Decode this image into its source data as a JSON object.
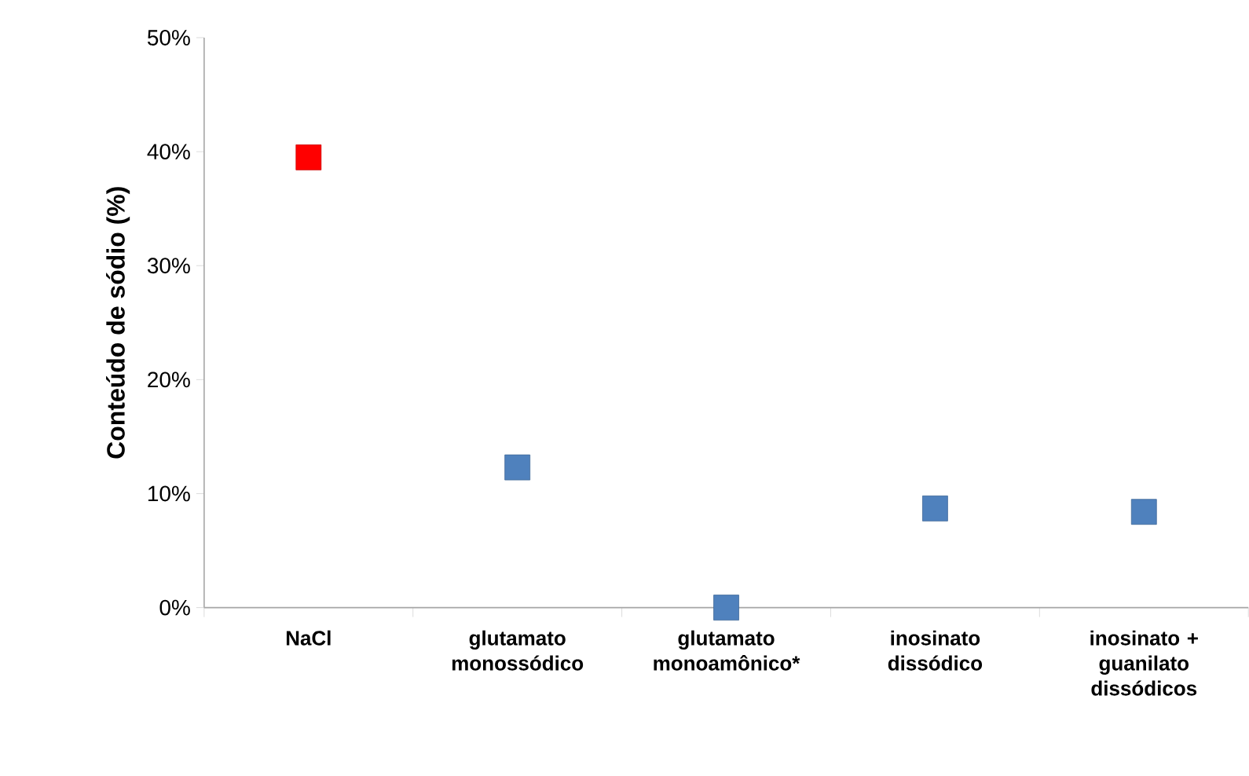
{
  "chart_data": {
    "type": "scatter",
    "ylabel": "Conteúdo de sódio (%)",
    "categories": [
      "NaCl",
      "glutamato monossódico",
      "glutamato monoamônico*",
      "inosinato dissódico",
      "inosinato + guanilato dissódicos"
    ],
    "values": [
      39.5,
      12.3,
      0,
      8.7,
      8.4
    ],
    "colors": [
      "#ff0000",
      "#4f81bd",
      "#4f81bd",
      "#4f81bd",
      "#4f81bd"
    ],
    "marker": "square",
    "grid": false,
    "ylim": [
      0,
      50
    ],
    "yticks": [
      {
        "value": 0,
        "label": "0%"
      },
      {
        "value": 10,
        "label": "10%"
      },
      {
        "value": 20,
        "label": "20%"
      },
      {
        "value": 30,
        "label": "30%"
      },
      {
        "value": 40,
        "label": "40%"
      },
      {
        "value": 50,
        "label": "50%"
      }
    ]
  }
}
